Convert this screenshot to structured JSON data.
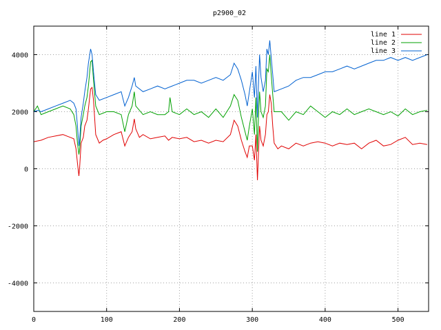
{
  "chart_data": {
    "type": "line",
    "title": "p2900_02",
    "xlabel": "",
    "ylabel": "",
    "xlim": [
      0,
      542
    ],
    "ylim": [
      -5000,
      5000
    ],
    "xticks": [
      0,
      100,
      200,
      300,
      400,
      500
    ],
    "yticks": [
      -4000,
      -2000,
      0,
      2000,
      4000
    ],
    "grid": true,
    "legend_position": "top-right",
    "series": [
      {
        "name": "line 1",
        "color": "#e00000",
        "x": [
          0,
          10,
          20,
          30,
          40,
          50,
          55,
          58,
          60,
          62,
          63,
          65,
          68,
          70,
          73,
          75,
          78,
          80,
          82,
          85,
          90,
          95,
          100,
          110,
          120,
          125,
          130,
          135,
          138,
          140,
          145,
          150,
          160,
          170,
          180,
          185,
          190,
          200,
          210,
          220,
          230,
          240,
          250,
          260,
          270,
          275,
          280,
          285,
          290,
          293,
          296,
          300,
          303,
          305,
          307,
          308,
          310,
          312,
          315,
          318,
          320,
          322,
          324,
          326,
          328,
          330,
          335,
          340,
          350,
          360,
          370,
          380,
          390,
          400,
          410,
          420,
          430,
          440,
          450,
          460,
          470,
          480,
          490,
          500,
          510,
          520,
          530,
          540
        ],
        "y": [
          950,
          1000,
          1100,
          1150,
          1200,
          1100,
          1050,
          700,
          200,
          -250,
          50,
          900,
          1100,
          1500,
          1700,
          2100,
          2800,
          2850,
          2400,
          1200,
          900,
          1000,
          1050,
          1200,
          1300,
          800,
          1100,
          1300,
          1750,
          1400,
          1100,
          1200,
          1050,
          1100,
          1150,
          1000,
          1100,
          1050,
          1100,
          950,
          1000,
          900,
          1000,
          950,
          1200,
          1700,
          1500,
          1000,
          600,
          400,
          800,
          800,
          300,
          1200,
          -400,
          200,
          1500,
          1000,
          800,
          1200,
          1900,
          2000,
          2600,
          2300,
          1500,
          900,
          700,
          800,
          700,
          900,
          800,
          900,
          950,
          900,
          800,
          900,
          850,
          900,
          700,
          900,
          1000,
          800,
          850,
          1000,
          1100,
          850,
          900,
          850
        ]
      },
      {
        "name": "line 2",
        "color": "#00a000",
        "x": [
          0,
          5,
          10,
          20,
          30,
          40,
          50,
          55,
          58,
          60,
          62,
          63,
          65,
          68,
          70,
          73,
          75,
          78,
          80,
          82,
          85,
          90,
          100,
          110,
          120,
          125,
          130,
          135,
          138,
          140,
          150,
          160,
          170,
          180,
          185,
          187,
          190,
          200,
          210,
          220,
          230,
          240,
          250,
          260,
          270,
          275,
          280,
          285,
          290,
          293,
          296,
          300,
          303,
          305,
          307,
          308,
          310,
          312,
          315,
          318,
          320,
          322,
          324,
          326,
          328,
          330,
          340,
          350,
          360,
          370,
          380,
          390,
          400,
          410,
          420,
          430,
          440,
          450,
          460,
          470,
          480,
          490,
          500,
          510,
          520,
          530,
          540
        ],
        "y": [
          2000,
          2200,
          1900,
          2000,
          2100,
          2200,
          2100,
          1900,
          1500,
          900,
          500,
          700,
          1500,
          1900,
          2200,
          2500,
          2900,
          3750,
          3800,
          3100,
          2200,
          1900,
          2000,
          2000,
          1900,
          1300,
          1900,
          2200,
          2700,
          2200,
          1900,
          2000,
          1900,
          1900,
          2000,
          2500,
          2000,
          1900,
          2100,
          1900,
          2000,
          1800,
          2100,
          1800,
          2200,
          2600,
          2400,
          1800,
          1300,
          1000,
          1500,
          2100,
          1200,
          2500,
          600,
          1500,
          2700,
          2000,
          1800,
          2200,
          3500,
          3400,
          4000,
          3300,
          2600,
          2000,
          2000,
          1700,
          2000,
          1900,
          2200,
          2000,
          1800,
          2000,
          1900,
          2100,
          1900,
          2000,
          2100,
          2000,
          1900,
          2000,
          1850,
          2100,
          1900,
          2000,
          2050
        ]
      },
      {
        "name": "line 3",
        "color": "#0060d0",
        "x": [
          0,
          5,
          10,
          20,
          30,
          40,
          50,
          55,
          58,
          60,
          62,
          63,
          65,
          68,
          70,
          73,
          75,
          78,
          80,
          82,
          85,
          90,
          100,
          110,
          120,
          125,
          130,
          135,
          138,
          140,
          150,
          160,
          170,
          180,
          190,
          200,
          210,
          220,
          230,
          240,
          250,
          260,
          270,
          275,
          280,
          285,
          290,
          293,
          296,
          300,
          303,
          305,
          307,
          308,
          310,
          312,
          315,
          318,
          320,
          322,
          324,
          326,
          328,
          330,
          340,
          350,
          360,
          370,
          380,
          390,
          400,
          410,
          420,
          430,
          440,
          450,
          460,
          470,
          480,
          490,
          500,
          510,
          520,
          530,
          540
        ],
        "y": [
          2000,
          2050,
          2000,
          2100,
          2200,
          2300,
          2400,
          2300,
          2100,
          1500,
          800,
          1000,
          1800,
          2300,
          2700,
          3200,
          3700,
          4200,
          4000,
          3400,
          2600,
          2400,
          2500,
          2600,
          2700,
          2200,
          2500,
          2900,
          3200,
          2900,
          2700,
          2800,
          2900,
          2800,
          2900,
          3000,
          3100,
          3100,
          3000,
          3100,
          3200,
          3100,
          3300,
          3700,
          3500,
          3100,
          2600,
          2200,
          2700,
          3400,
          2500,
          3600,
          1800,
          2600,
          4000,
          3200,
          2700,
          3100,
          4200,
          4000,
          4500,
          3900,
          3300,
          2700,
          2800,
          2900,
          3100,
          3200,
          3200,
          3300,
          3400,
          3400,
          3500,
          3600,
          3500,
          3600,
          3700,
          3800,
          3800,
          3900,
          3800,
          3900,
          3800,
          3900,
          4000
        ]
      }
    ]
  }
}
